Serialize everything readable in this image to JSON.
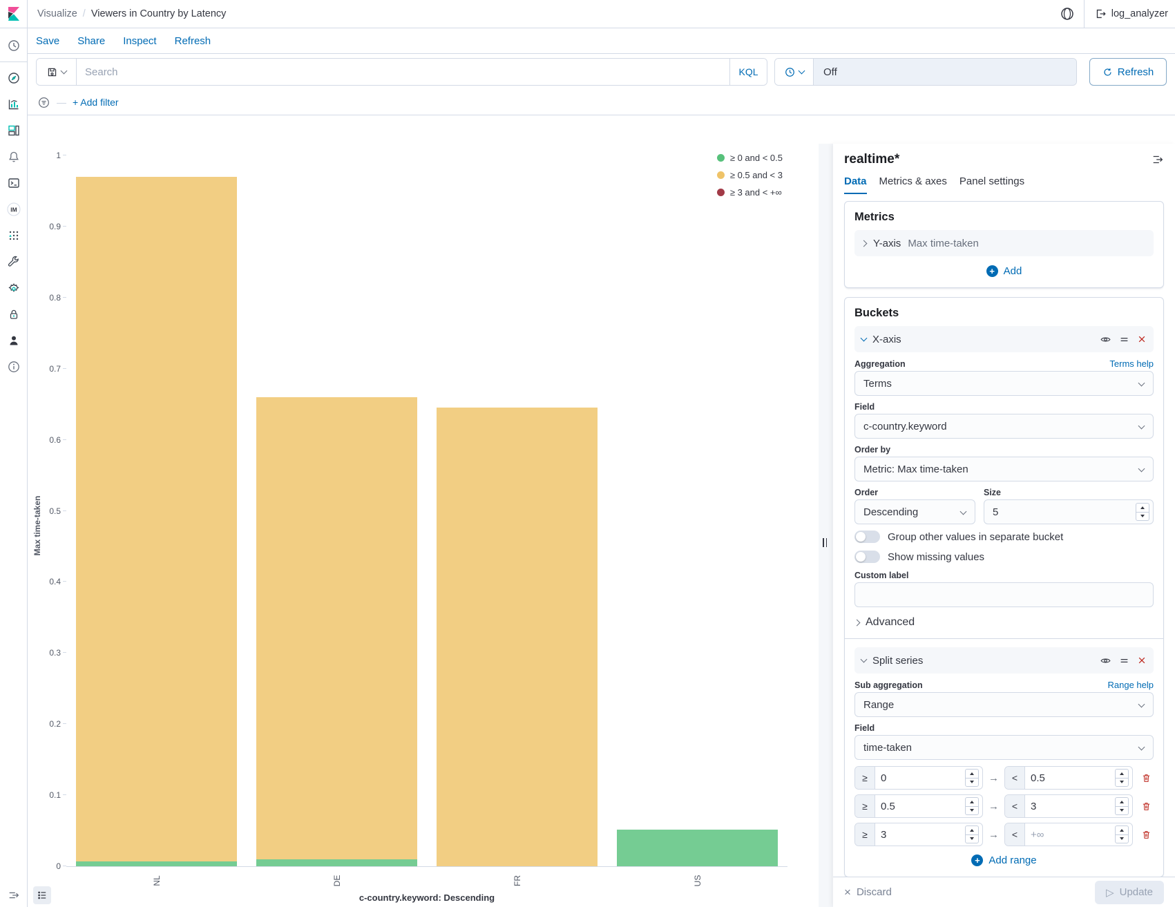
{
  "header": {
    "breadcrumb_root": "Visualize",
    "breadcrumb_sep": "/",
    "title": "Viewers in Country by Latency",
    "user": "log_analyzer",
    "icons": [
      "kibana-logo",
      "space-avatar-icon",
      "logout-icon"
    ]
  },
  "toolbar": {
    "items": [
      "Save",
      "Share",
      "Inspect",
      "Refresh"
    ]
  },
  "query_bar": {
    "search_placeholder": "Search",
    "kql_label": "KQL",
    "time_value": "Off",
    "refresh_label": "Refresh",
    "add_filter_label": "+ Add filter",
    "icons": [
      "saved-query-icon",
      "chevron-down-icon",
      "clock-icon",
      "refresh-icon",
      "filter-icon"
    ]
  },
  "sidebar": {
    "icons": [
      "recent-clock",
      "discover-compass",
      "visualize-chart",
      "dashboard",
      "alerts-bell",
      "dev-tools-console",
      "index-management",
      "machine-learning-grid",
      "tools-wrench",
      "management-gear",
      "security-lock",
      "users-person",
      "info-circle"
    ],
    "collapse_icon": "collapse-menu-icon",
    "legend_toggle_icon": "list-icon"
  },
  "chart_data": {
    "type": "bar",
    "stacked": true,
    "title": "",
    "categories": [
      "NL",
      "DE",
      "FR",
      "US"
    ],
    "series": [
      {
        "name": "≥ 0 and < 0.5",
        "color": "#57C17B",
        "values": [
          0.007,
          0.01,
          0.0,
          0.052
        ]
      },
      {
        "name": "≥ 0.5 and < 3",
        "color": "#EFC368",
        "values": [
          0.963,
          0.65,
          0.645,
          0.0
        ]
      },
      {
        "name": "≥ 3 and < +∞",
        "color": "#A23A47",
        "values": [
          0,
          0,
          0,
          0
        ]
      }
    ],
    "xlabel": "c-country.keyword: Descending",
    "ylabel": "Max time-taken",
    "ylim": [
      0,
      1
    ],
    "yticks": [
      "0",
      "0.1",
      "0.2",
      "0.3",
      "0.4",
      "0.5",
      "0.6",
      "0.7",
      "0.8",
      "0.9",
      "1"
    ],
    "legend_position": "top-right",
    "grid": false
  },
  "panel": {
    "title": "realtime*",
    "tabs": [
      "Data",
      "Metrics & axes",
      "Panel settings"
    ],
    "active_tab": "Data",
    "metrics": {
      "heading": "Metrics",
      "row": {
        "axis": "Y-axis",
        "value": "Max time-taken"
      },
      "add_label": "Add"
    },
    "buckets": {
      "heading": "Buckets",
      "xaxis": {
        "header": "X-axis",
        "aggregation_label": "Aggregation",
        "aggregation_help": "Terms help",
        "aggregation_value": "Terms",
        "field_label": "Field",
        "field_value": "c-country.keyword",
        "order_by_label": "Order by",
        "order_by_value": "Metric: Max time-taken",
        "order_label": "Order",
        "order_value": "Descending",
        "size_label": "Size",
        "size_value": "5",
        "toggles": [
          {
            "label": "Group other values in separate bucket",
            "on": false
          },
          {
            "label": "Show missing values",
            "on": false
          }
        ],
        "custom_label_label": "Custom label",
        "custom_label_value": "",
        "advanced_label": "Advanced",
        "icons": [
          "eye-icon",
          "drag-handle-icon",
          "remove-x-icon"
        ]
      },
      "split": {
        "header": "Split series",
        "sub_aggregation_label": "Sub aggregation",
        "sub_aggregation_help": "Range help",
        "sub_aggregation_value": "Range",
        "field_label": "Field",
        "field_value": "time-taken",
        "gte_symbol": "≥",
        "lt_symbol": "<",
        "arrow_symbol": "→",
        "ranges": [
          {
            "from": "0",
            "to": "0.5",
            "to_placeholder": ""
          },
          {
            "from": "0.5",
            "to": "3",
            "to_placeholder": ""
          },
          {
            "from": "3",
            "to": "",
            "to_placeholder": "+∞"
          }
        ],
        "add_range_label": "Add range",
        "icons": [
          "eye-icon",
          "drag-handle-icon",
          "remove-x-icon",
          "trash-icon"
        ]
      }
    },
    "footer": {
      "discard_label": "Discard",
      "update_label": "Update"
    }
  }
}
